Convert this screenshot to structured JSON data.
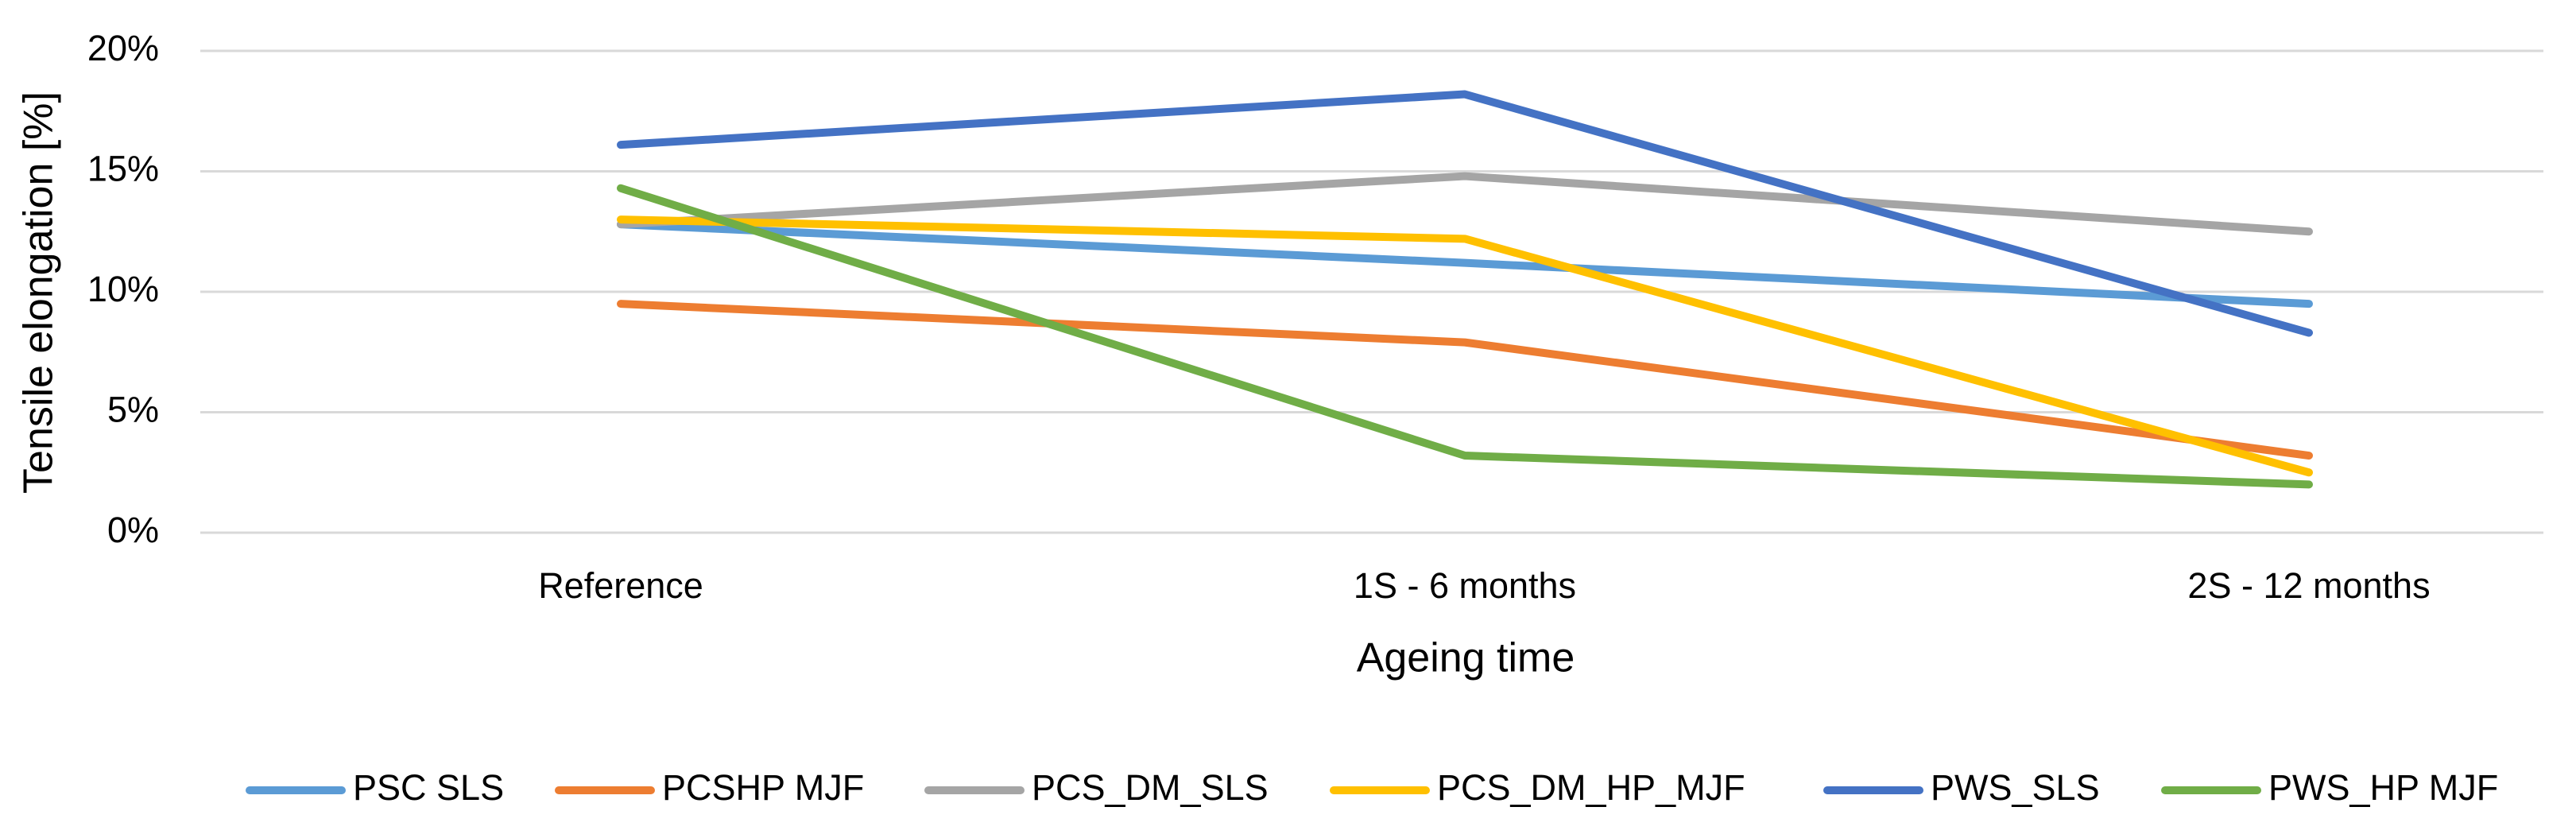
{
  "chart_data": {
    "type": "line",
    "x_label": "Ageing time",
    "y_label": "Tensile elongation [%]",
    "categories": [
      "Reference",
      "1S - 6 months",
      "2S - 12 months"
    ],
    "series": [
      {
        "name": "PSC SLS",
        "color": "#5B9BD5",
        "values": [
          12.8,
          11.2,
          9.5
        ]
      },
      {
        "name": "PCSHP MJF",
        "color": "#ED7D31",
        "values": [
          9.5,
          7.9,
          3.2
        ]
      },
      {
        "name": "PCS_DM_SLS",
        "color": "#A5A5A5",
        "values": [
          12.8,
          14.8,
          12.5
        ]
      },
      {
        "name": "PCS_DM_HP_MJF",
        "color": "#FFC000",
        "values": [
          13.0,
          12.2,
          2.5
        ]
      },
      {
        "name": "PWS_SLS",
        "color": "#4472C4",
        "values": [
          16.1,
          18.2,
          8.3
        ]
      },
      {
        "name": "PWS_HP MJF",
        "color": "#70AD47",
        "values": [
          14.3,
          3.2,
          2.0
        ]
      }
    ],
    "ylim": [
      0,
      20
    ],
    "yticks": [
      {
        "value": 0,
        "label": "0%"
      },
      {
        "value": 5,
        "label": "5%"
      },
      {
        "value": 10,
        "label": "10%"
      },
      {
        "value": 15,
        "label": "15%"
      },
      {
        "value": 20,
        "label": "20%"
      }
    ],
    "grid": true,
    "legend": "bottom"
  }
}
